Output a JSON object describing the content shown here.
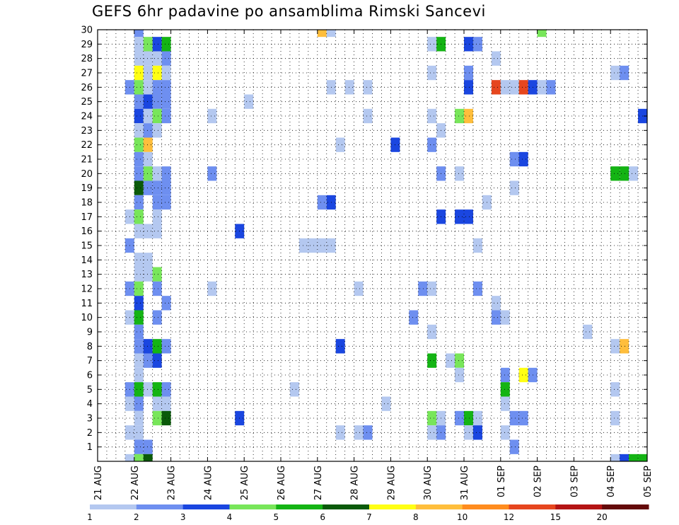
{
  "chart_data": {
    "type": "heatmap",
    "title": "GEFS 6hr padavine po ansamblima Rimski Sancevi",
    "x_ticks": [
      "21 AUG",
      "22 AUG",
      "23 AUG",
      "24 AUG",
      "25 AUG",
      "26 AUG",
      "27 AUG",
      "28 AUG",
      "29 AUG",
      "30 AUG",
      "31 AUG",
      "01 SEP",
      "02 SEP",
      "03 SEP",
      "04 SEP",
      "05 SEP"
    ],
    "y_ticks": [
      1,
      2,
      3,
      4,
      5,
      6,
      7,
      8,
      9,
      10,
      11,
      12,
      13,
      14,
      15,
      16,
      17,
      18,
      19,
      20,
      21,
      22,
      23,
      24,
      25,
      26,
      27,
      28,
      29,
      30
    ],
    "x_range": [
      "21 AUG 00",
      "05 SEP 00"
    ],
    "y_range": [
      0,
      30
    ],
    "grid": true,
    "time_step_hours": 6,
    "colorbar": {
      "labels": [
        "1",
        "2",
        "3",
        "4",
        "5",
        "6",
        "7",
        "8",
        "10",
        "12",
        "15",
        "20"
      ],
      "colors": [
        "#b4c8f0",
        "#6e8ff0",
        "#1a46e0",
        "#78e65a",
        "#14b414",
        "#0a5a0a",
        "#ffff14",
        "#ffbe3c",
        "#ff8c1e",
        "#e6461e",
        "#b41414",
        "#640a0a"
      ]
    },
    "cells": [
      {
        "x": "22 AUG 00",
        "y": 30,
        "level": 2
      },
      {
        "x": "27 AUG 00",
        "y": 30,
        "level": 8
      },
      {
        "x": "27 AUG 06",
        "y": 30,
        "level": 1
      },
      {
        "x": "02 SEP 00",
        "y": 30,
        "level": 4
      },
      {
        "x": "22 AUG 00",
        "y": 29,
        "level": 1
      },
      {
        "x": "22 AUG 06",
        "y": 29,
        "level": 4
      },
      {
        "x": "22 AUG 12",
        "y": 29,
        "level": 3
      },
      {
        "x": "22 AUG 18",
        "y": 29,
        "level": 5
      },
      {
        "x": "30 AUG 00",
        "y": 29,
        "level": 1
      },
      {
        "x": "30 AUG 06",
        "y": 29,
        "level": 5
      },
      {
        "x": "31 AUG 00",
        "y": 29,
        "level": 3
      },
      {
        "x": "31 AUG 06",
        "y": 29,
        "level": 2
      },
      {
        "x": "22 AUG 00",
        "y": 28,
        "level": 1
      },
      {
        "x": "22 AUG 06",
        "y": 28,
        "level": 1
      },
      {
        "x": "22 AUG 12",
        "y": 28,
        "level": 1
      },
      {
        "x": "22 AUG 18",
        "y": 28,
        "level": 2
      },
      {
        "x": "31 AUG 18",
        "y": 28,
        "level": 1
      },
      {
        "x": "22 AUG 00",
        "y": 27,
        "level": 7
      },
      {
        "x": "22 AUG 06",
        "y": 27,
        "level": 1
      },
      {
        "x": "22 AUG 12",
        "y": 27,
        "level": 7
      },
      {
        "x": "22 AUG 18",
        "y": 27,
        "level": 1
      },
      {
        "x": "30 AUG 00",
        "y": 27,
        "level": 1
      },
      {
        "x": "31 AUG 00",
        "y": 27,
        "level": 2
      },
      {
        "x": "04 SEP 00",
        "y": 27,
        "level": 1
      },
      {
        "x": "04 SEP 06",
        "y": 27,
        "level": 2
      },
      {
        "x": "21 AUG 18",
        "y": 26,
        "level": 2
      },
      {
        "x": "22 AUG 00",
        "y": 26,
        "level": 4
      },
      {
        "x": "22 AUG 06",
        "y": 26,
        "level": 1
      },
      {
        "x": "22 AUG 12",
        "y": 26,
        "level": 2
      },
      {
        "x": "22 AUG 18",
        "y": 26,
        "level": 2
      },
      {
        "x": "27 AUG 06",
        "y": 26,
        "level": 1
      },
      {
        "x": "27 AUG 18",
        "y": 26,
        "level": 1
      },
      {
        "x": "28 AUG 06",
        "y": 26,
        "level": 1
      },
      {
        "x": "31 AUG 00",
        "y": 26,
        "level": 3
      },
      {
        "x": "31 AUG 18",
        "y": 26,
        "level": 10
      },
      {
        "x": "01 SEP 00",
        "y": 26,
        "level": 1
      },
      {
        "x": "01 SEP 06",
        "y": 26,
        "level": 1
      },
      {
        "x": "01 SEP 12",
        "y": 26,
        "level": 10
      },
      {
        "x": "01 SEP 18",
        "y": 26,
        "level": 3
      },
      {
        "x": "02 SEP 00",
        "y": 26,
        "level": 1
      },
      {
        "x": "02 SEP 06",
        "y": 26,
        "level": 2
      },
      {
        "x": "22 AUG 00",
        "y": 25,
        "level": 2
      },
      {
        "x": "22 AUG 06",
        "y": 25,
        "level": 3
      },
      {
        "x": "22 AUG 12",
        "y": 25,
        "level": 2
      },
      {
        "x": "22 AUG 18",
        "y": 25,
        "level": 2
      },
      {
        "x": "25 AUG 00",
        "y": 25,
        "level": 1
      },
      {
        "x": "22 AUG 00",
        "y": 24,
        "level": 3
      },
      {
        "x": "22 AUG 06",
        "y": 24,
        "level": 1
      },
      {
        "x": "22 AUG 12",
        "y": 24,
        "level": 4
      },
      {
        "x": "22 AUG 18",
        "y": 24,
        "level": 2
      },
      {
        "x": "24 AUG 00",
        "y": 24,
        "level": 1
      },
      {
        "x": "28 AUG 06",
        "y": 24,
        "level": 1
      },
      {
        "x": "30 AUG 00",
        "y": 24,
        "level": 1
      },
      {
        "x": "30 AUG 18",
        "y": 24,
        "level": 4
      },
      {
        "x": "31 AUG 00",
        "y": 24,
        "level": 8
      },
      {
        "x": "04 SEP 18",
        "y": 24,
        "level": 3
      },
      {
        "x": "22 AUG 00",
        "y": 23,
        "level": 1
      },
      {
        "x": "22 AUG 06",
        "y": 23,
        "level": 2
      },
      {
        "x": "22 AUG 12",
        "y": 23,
        "level": 1
      },
      {
        "x": "30 AUG 06",
        "y": 23,
        "level": 1
      },
      {
        "x": "22 AUG 00",
        "y": 22,
        "level": 4
      },
      {
        "x": "22 AUG 06",
        "y": 22,
        "level": 8
      },
      {
        "x": "27 AUG 12",
        "y": 22,
        "level": 1
      },
      {
        "x": "29 AUG 00",
        "y": 22,
        "level": 3
      },
      {
        "x": "30 AUG 00",
        "y": 22,
        "level": 2
      },
      {
        "x": "22 AUG 00",
        "y": 21,
        "level": 2
      },
      {
        "x": "22 AUG 06",
        "y": 21,
        "level": 1
      },
      {
        "x": "01 SEP 06",
        "y": 21,
        "level": 2
      },
      {
        "x": "01 SEP 12",
        "y": 21,
        "level": 3
      },
      {
        "x": "22 AUG 00",
        "y": 20,
        "level": 2
      },
      {
        "x": "22 AUG 06",
        "y": 20,
        "level": 4
      },
      {
        "x": "22 AUG 12",
        "y": 20,
        "level": 1
      },
      {
        "x": "22 AUG 18",
        "y": 20,
        "level": 2
      },
      {
        "x": "24 AUG 00",
        "y": 20,
        "level": 2
      },
      {
        "x": "30 AUG 06",
        "y": 20,
        "level": 2
      },
      {
        "x": "30 AUG 18",
        "y": 20,
        "level": 1
      },
      {
        "x": "04 SEP 00",
        "y": 20,
        "level": 5
      },
      {
        "x": "04 SEP 06",
        "y": 20,
        "level": 5
      },
      {
        "x": "04 SEP 12",
        "y": 20,
        "level": 1
      },
      {
        "x": "22 AUG 00",
        "y": 19,
        "level": 6
      },
      {
        "x": "22 AUG 06",
        "y": 19,
        "level": 2
      },
      {
        "x": "22 AUG 12",
        "y": 19,
        "level": 2
      },
      {
        "x": "22 AUG 18",
        "y": 19,
        "level": 2
      },
      {
        "x": "01 SEP 06",
        "y": 19,
        "level": 1
      },
      {
        "x": "22 AUG 00",
        "y": 18,
        "level": 2
      },
      {
        "x": "22 AUG 12",
        "y": 18,
        "level": 2
      },
      {
        "x": "22 AUG 18",
        "y": 18,
        "level": 2
      },
      {
        "x": "27 AUG 00",
        "y": 18,
        "level": 2
      },
      {
        "x": "27 AUG 06",
        "y": 18,
        "level": 3
      },
      {
        "x": "31 AUG 12",
        "y": 18,
        "level": 1
      },
      {
        "x": "05 SEP 00",
        "y": 18,
        "level": 1
      },
      {
        "x": "21 AUG 18",
        "y": 17,
        "level": 1
      },
      {
        "x": "22 AUG 00",
        "y": 17,
        "level": 4
      },
      {
        "x": "22 AUG 12",
        "y": 17,
        "level": 1
      },
      {
        "x": "30 AUG 06",
        "y": 17,
        "level": 3
      },
      {
        "x": "30 AUG 18",
        "y": 17,
        "level": 3
      },
      {
        "x": "31 AUG 00",
        "y": 17,
        "level": 3
      },
      {
        "x": "22 AUG 00",
        "y": 16,
        "level": 1
      },
      {
        "x": "22 AUG 06",
        "y": 16,
        "level": 1
      },
      {
        "x": "22 AUG 12",
        "y": 16,
        "level": 1
      },
      {
        "x": "24 AUG 18",
        "y": 16,
        "level": 3
      },
      {
        "x": "21 AUG 18",
        "y": 15,
        "level": 2
      },
      {
        "x": "26 AUG 12",
        "y": 15,
        "level": 1
      },
      {
        "x": "26 AUG 18",
        "y": 15,
        "level": 1
      },
      {
        "x": "27 AUG 00",
        "y": 15,
        "level": 1
      },
      {
        "x": "27 AUG 06",
        "y": 15,
        "level": 1
      },
      {
        "x": "31 AUG 06",
        "y": 15,
        "level": 1
      },
      {
        "x": "05 SEP 00",
        "y": 15,
        "level": 1
      },
      {
        "x": "22 AUG 00",
        "y": 14,
        "level": 1
      },
      {
        "x": "22 AUG 06",
        "y": 14,
        "level": 1
      },
      {
        "x": "22 AUG 00",
        "y": 13,
        "level": 1
      },
      {
        "x": "22 AUG 06",
        "y": 13,
        "level": 1
      },
      {
        "x": "22 AUG 12",
        "y": 13,
        "level": 4
      },
      {
        "x": "21 AUG 18",
        "y": 12,
        "level": 2
      },
      {
        "x": "22 AUG 00",
        "y": 12,
        "level": 4
      },
      {
        "x": "22 AUG 12",
        "y": 12,
        "level": 2
      },
      {
        "x": "24 AUG 00",
        "y": 12,
        "level": 1
      },
      {
        "x": "28 AUG 00",
        "y": 12,
        "level": 1
      },
      {
        "x": "29 AUG 18",
        "y": 12,
        "level": 2
      },
      {
        "x": "30 AUG 00",
        "y": 12,
        "level": 1
      },
      {
        "x": "31 AUG 06",
        "y": 12,
        "level": 2
      },
      {
        "x": "22 AUG 00",
        "y": 11,
        "level": 3
      },
      {
        "x": "22 AUG 18",
        "y": 11,
        "level": 2
      },
      {
        "x": "31 AUG 18",
        "y": 11,
        "level": 1
      },
      {
        "x": "21 AUG 18",
        "y": 10,
        "level": 1
      },
      {
        "x": "22 AUG 00",
        "y": 10,
        "level": 5
      },
      {
        "x": "22 AUG 12",
        "y": 10,
        "level": 2
      },
      {
        "x": "29 AUG 12",
        "y": 10,
        "level": 2
      },
      {
        "x": "31 AUG 18",
        "y": 10,
        "level": 2
      },
      {
        "x": "01 SEP 00",
        "y": 10,
        "level": 1
      },
      {
        "x": "22 AUG 00",
        "y": 9,
        "level": 2
      },
      {
        "x": "30 AUG 00",
        "y": 9,
        "level": 1
      },
      {
        "x": "03 SEP 06",
        "y": 9,
        "level": 1
      },
      {
        "x": "22 AUG 00",
        "y": 8,
        "level": 2
      },
      {
        "x": "22 AUG 06",
        "y": 8,
        "level": 3
      },
      {
        "x": "22 AUG 12",
        "y": 8,
        "level": 5
      },
      {
        "x": "22 AUG 18",
        "y": 8,
        "level": 2
      },
      {
        "x": "27 AUG 12",
        "y": 8,
        "level": 3
      },
      {
        "x": "04 SEP 00",
        "y": 8,
        "level": 1
      },
      {
        "x": "04 SEP 06",
        "y": 8,
        "level": 8
      },
      {
        "x": "22 AUG 00",
        "y": 7,
        "level": 1
      },
      {
        "x": "22 AUG 06",
        "y": 7,
        "level": 2
      },
      {
        "x": "22 AUG 12",
        "y": 7,
        "level": 3
      },
      {
        "x": "30 AUG 00",
        "y": 7,
        "level": 5
      },
      {
        "x": "30 AUG 12",
        "y": 7,
        "level": 1
      },
      {
        "x": "30 AUG 18",
        "y": 7,
        "level": 4
      },
      {
        "x": "05 SEP 00",
        "y": 7,
        "level": 3
      },
      {
        "x": "22 AUG 00",
        "y": 6,
        "level": 1
      },
      {
        "x": "30 AUG 18",
        "y": 6,
        "level": 1
      },
      {
        "x": "01 SEP 00",
        "y": 6,
        "level": 2
      },
      {
        "x": "01 SEP 12",
        "y": 6,
        "level": 7
      },
      {
        "x": "01 SEP 18",
        "y": 6,
        "level": 2
      },
      {
        "x": "21 AUG 18",
        "y": 5,
        "level": 2
      },
      {
        "x": "22 AUG 00",
        "y": 5,
        "level": 5
      },
      {
        "x": "22 AUG 06",
        "y": 5,
        "level": 1
      },
      {
        "x": "22 AUG 12",
        "y": 5,
        "level": 5
      },
      {
        "x": "22 AUG 18",
        "y": 5,
        "level": 2
      },
      {
        "x": "26 AUG 06",
        "y": 5,
        "level": 1
      },
      {
        "x": "01 SEP 00",
        "y": 5,
        "level": 5
      },
      {
        "x": "04 SEP 00",
        "y": 5,
        "level": 1
      },
      {
        "x": "21 AUG 18",
        "y": 4,
        "level": 1
      },
      {
        "x": "22 AUG 00",
        "y": 4,
        "level": 2
      },
      {
        "x": "22 AUG 12",
        "y": 4,
        "level": 1
      },
      {
        "x": "22 AUG 18",
        "y": 4,
        "level": 1
      },
      {
        "x": "28 AUG 18",
        "y": 4,
        "level": 1
      },
      {
        "x": "01 SEP 00",
        "y": 4,
        "level": 1
      },
      {
        "x": "22 AUG 00",
        "y": 3,
        "level": 1
      },
      {
        "x": "22 AUG 12",
        "y": 3,
        "level": 4
      },
      {
        "x": "22 AUG 18",
        "y": 3,
        "level": 6
      },
      {
        "x": "24 AUG 18",
        "y": 3,
        "level": 3
      },
      {
        "x": "30 AUG 00",
        "y": 3,
        "level": 4
      },
      {
        "x": "30 AUG 06",
        "y": 3,
        "level": 1
      },
      {
        "x": "30 AUG 18",
        "y": 3,
        "level": 2
      },
      {
        "x": "31 AUG 00",
        "y": 3,
        "level": 5
      },
      {
        "x": "31 AUG 06",
        "y": 3,
        "level": 1
      },
      {
        "x": "01 SEP 06",
        "y": 3,
        "level": 2
      },
      {
        "x": "01 SEP 12",
        "y": 3,
        "level": 2
      },
      {
        "x": "04 SEP 00",
        "y": 3,
        "level": 1
      },
      {
        "x": "05 SEP 00",
        "y": 3,
        "level": 1
      },
      {
        "x": "21 AUG 18",
        "y": 2,
        "level": 1
      },
      {
        "x": "22 AUG 00",
        "y": 2,
        "level": 1
      },
      {
        "x": "27 AUG 12",
        "y": 2,
        "level": 1
      },
      {
        "x": "28 AUG 00",
        "y": 2,
        "level": 1
      },
      {
        "x": "28 AUG 06",
        "y": 2,
        "level": 2
      },
      {
        "x": "30 AUG 00",
        "y": 2,
        "level": 1
      },
      {
        "x": "30 AUG 06",
        "y": 2,
        "level": 2
      },
      {
        "x": "31 AUG 00",
        "y": 2,
        "level": 1
      },
      {
        "x": "31 AUG 06",
        "y": 2,
        "level": 3
      },
      {
        "x": "01 SEP 00",
        "y": 2,
        "level": 1
      },
      {
        "x": "22 AUG 00",
        "y": 1,
        "level": 2
      },
      {
        "x": "22 AUG 06",
        "y": 1,
        "level": 2
      },
      {
        "x": "01 SEP 06",
        "y": 1,
        "level": 2
      },
      {
        "x": "21 AUG 18",
        "y": 0,
        "level": 1
      },
      {
        "x": "22 AUG 00",
        "y": 0,
        "level": 4
      },
      {
        "x": "22 AUG 06",
        "y": 0,
        "level": 6
      },
      {
        "x": "04 SEP 00",
        "y": 0,
        "level": 1
      },
      {
        "x": "04 SEP 06",
        "y": 0,
        "level": 3
      },
      {
        "x": "04 SEP 12",
        "y": 0,
        "level": 5
      },
      {
        "x": "04 SEP 18",
        "y": 0,
        "level": 5
      }
    ]
  }
}
